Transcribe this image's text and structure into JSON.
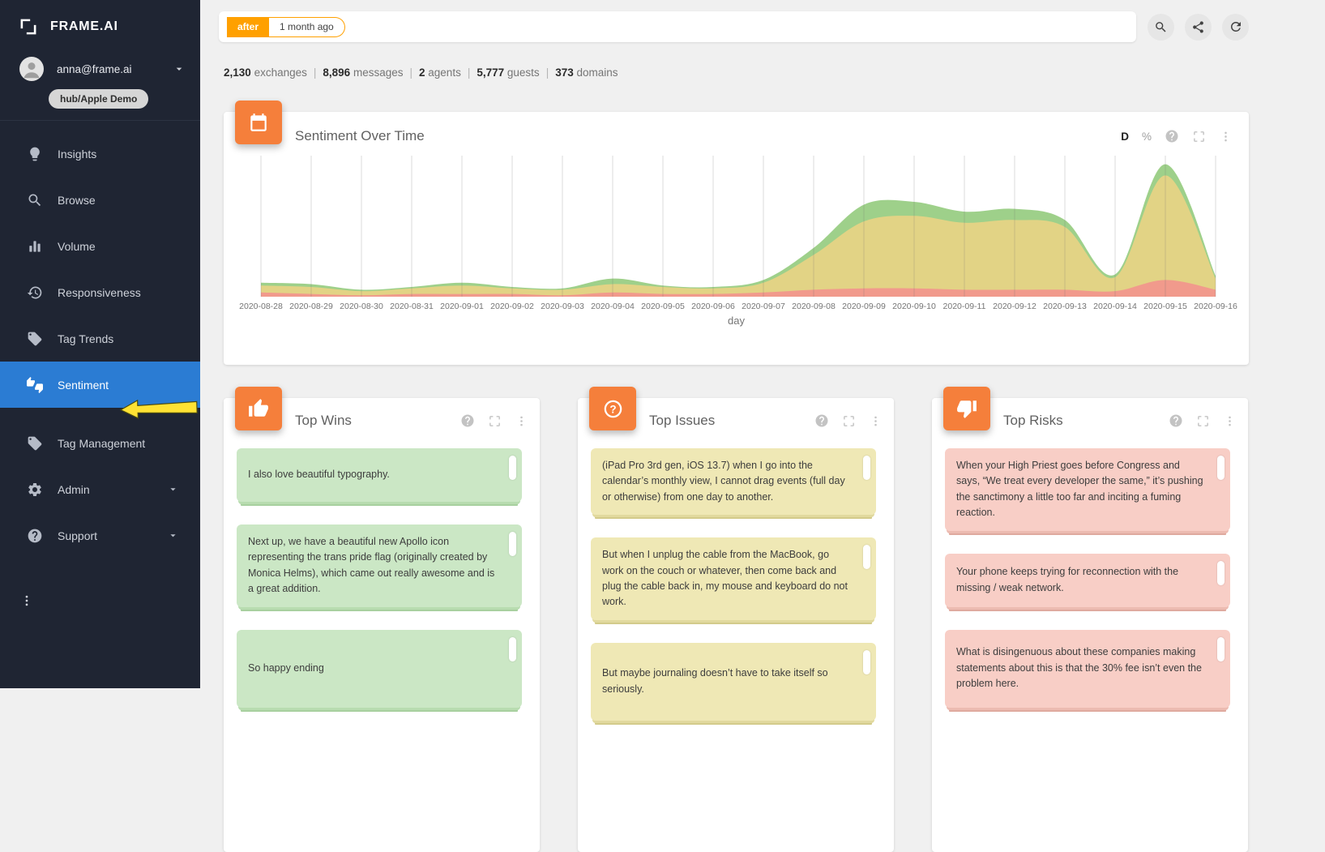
{
  "colors": {
    "sidebar_bg": "#1f2533",
    "active_blue": "#2b7cd3",
    "accent_orange": "#f57f3b",
    "chip_orange": "#ffa000",
    "annotation_yellow": "#ffe234",
    "quote_positive_bg": "#cbe7c5",
    "quote_neutral_bg": "#efe8b5",
    "quote_negative_bg": "#f8cec6"
  },
  "sidebar": {
    "logo_text": "FRAME.AI",
    "user": {
      "email": "anna@frame.ai",
      "workspace": "hub/Apple Demo"
    },
    "items": [
      {
        "label": "Insights"
      },
      {
        "label": "Browse"
      },
      {
        "label": "Volume"
      },
      {
        "label": "Responsiveness"
      },
      {
        "label": "Tag Trends"
      },
      {
        "label": "Sentiment"
      },
      {
        "label": "Tag Management"
      },
      {
        "label": "Admin"
      },
      {
        "label": "Support"
      }
    ]
  },
  "topbar": {
    "filter_operator": "after",
    "filter_value": "1 month ago"
  },
  "stats": {
    "items": [
      {
        "value": "2,130",
        "label": "exchanges"
      },
      {
        "value": "8,896",
        "label": "messages"
      },
      {
        "value": "2",
        "label": "agents"
      },
      {
        "value": "5,777",
        "label": "guests"
      },
      {
        "value": "373",
        "label": "domains"
      }
    ]
  },
  "sentiment_card": {
    "title": "Sentiment Over Time",
    "granularity_label": "D",
    "percent_label": "%",
    "xaxis_label": "day"
  },
  "chart_data": {
    "type": "area",
    "stacked": true,
    "title": "Sentiment Over Time",
    "xlabel": "day",
    "ylim": [
      0,
      100
    ],
    "grid": "vertical",
    "x": [
      "2020-08-28",
      "2020-08-29",
      "2020-08-30",
      "2020-08-31",
      "2020-09-01",
      "2020-09-02",
      "2020-09-03",
      "2020-09-04",
      "2020-09-05",
      "2020-09-06",
      "2020-09-07",
      "2020-09-08",
      "2020-09-09",
      "2020-09-10",
      "2020-09-11",
      "2020-09-12",
      "2020-09-13",
      "2020-09-14",
      "2020-09-15",
      "2020-09-16"
    ],
    "series": [
      {
        "name": "negative",
        "color": "#f19a8c",
        "values": [
          3,
          2,
          1,
          2,
          2,
          2,
          1,
          3,
          2,
          2,
          3,
          5,
          6,
          6,
          5,
          5,
          5,
          4,
          12,
          5
        ]
      },
      {
        "name": "neutral",
        "color": "#e2d385",
        "values": [
          5,
          5,
          3,
          4,
          6,
          4,
          4,
          6,
          5,
          4,
          7,
          25,
          48,
          52,
          48,
          50,
          45,
          10,
          75,
          8
        ]
      },
      {
        "name": "positive",
        "color": "#9ed08a",
        "values": [
          2,
          2,
          1,
          1,
          2,
          1,
          1,
          4,
          1,
          1,
          2,
          5,
          12,
          10,
          8,
          8,
          5,
          2,
          8,
          2
        ]
      }
    ]
  },
  "panels": [
    {
      "title": "Top Wins",
      "quotes": [
        {
          "text": "I also love beautiful typography."
        },
        {
          "text": "Next up, we have a beautiful new Apollo icon representing the trans pride flag (originally created by Monica Helms), which came out really awesome and is a great addition."
        },
        {
          "text": "So happy ending"
        }
      ]
    },
    {
      "title": "Top Issues",
      "quotes": [
        {
          "text": "(iPad Pro 3rd gen, iOS 13.7) when I go into the calendar’s monthly view, I cannot drag events (full day or otherwise) from one day to another."
        },
        {
          "text": "But when I unplug the cable from the MacBook, go work on the couch or whatever, then come back and plug the cable back in, my mouse and keyboard do not work."
        },
        {
          "text": "But maybe journaling doesn’t have to take itself so seriously."
        }
      ]
    },
    {
      "title": "Top Risks",
      "quotes": [
        {
          "text": "When your High Priest goes before Congress and says, “We treat every developer the same,” it’s pushing the sanctimony a little too far and inciting a fuming reaction."
        },
        {
          "text": "Your phone keeps trying for reconnection with the missing / weak network."
        },
        {
          "text": "What is disingenuous about these companies making statements about this is that the 30% fee isn’t even the problem here."
        }
      ]
    }
  ]
}
